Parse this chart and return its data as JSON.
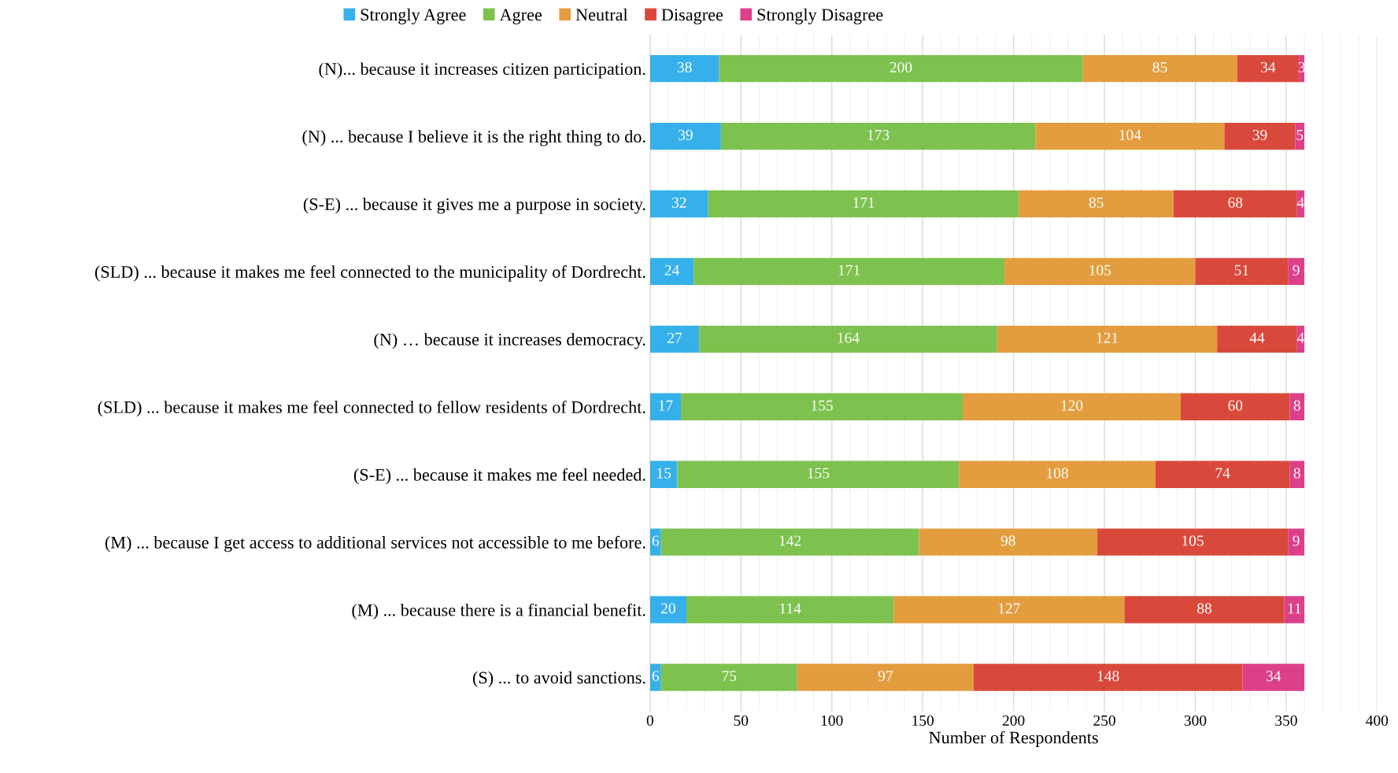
{
  "chart_data": {
    "type": "bar",
    "orientation": "horizontal",
    "stacked": true,
    "data_labels": true,
    "legend": "top",
    "grid": "x",
    "xlabel": "Number of Respondents",
    "xlim": [
      0,
      400
    ],
    "xticks": [
      0,
      50,
      100,
      150,
      200,
      250,
      300,
      350,
      400
    ],
    "categories": [
      "(N)... because it increases citizen participation.",
      "(N) ... because I believe it is the right thing to do.",
      "(S-E) ... because it gives me a purpose in society.",
      "(SLD) ... because it makes me feel connected to the municipality of Dordrecht.",
      "(N) … because it increases democracy.",
      "(SLD) ... because it makes me feel connected to fellow residents of Dordrecht.",
      "(S-E) ... because it makes me feel needed.",
      "(M) ... because I get access to additional services not accessible to me before.",
      "(M) ... because there is a financial benefit.",
      "(S) ... to avoid sanctions."
    ],
    "series": [
      {
        "name": "Strongly Agree",
        "color": "#36b0ea",
        "values": [
          38,
          39,
          32,
          24,
          27,
          17,
          15,
          6,
          20,
          6
        ]
      },
      {
        "name": "Agree",
        "color": "#7dc24e",
        "values": [
          200,
          173,
          171,
          171,
          164,
          155,
          155,
          142,
          114,
          75
        ]
      },
      {
        "name": "Neutral",
        "color": "#e39d3e",
        "values": [
          85,
          104,
          85,
          105,
          121,
          120,
          108,
          98,
          127,
          97
        ]
      },
      {
        "name": "Disagree",
        "color": "#d9493b",
        "values": [
          34,
          39,
          68,
          51,
          44,
          60,
          74,
          105,
          88,
          148
        ]
      },
      {
        "name": "Strongly Disagree",
        "color": "#dc4088",
        "values": [
          3,
          5,
          4,
          9,
          4,
          8,
          8,
          9,
          11,
          34
        ]
      }
    ]
  }
}
